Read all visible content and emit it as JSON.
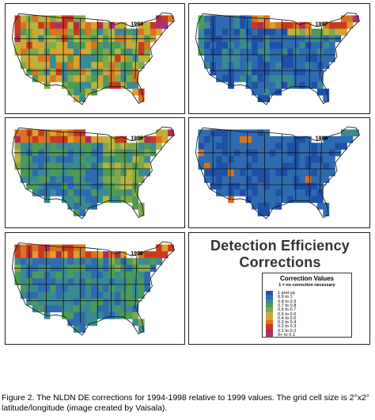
{
  "maps": [
    {
      "year": "1994",
      "pattern": "mixed"
    },
    {
      "year": "1997",
      "pattern": "mostly-blue-north-edge"
    },
    {
      "year": "1995",
      "pattern": "green-blue"
    },
    {
      "year": "1998",
      "pattern": "blue"
    },
    {
      "year": "1996",
      "pattern": "blue-green-north-red"
    }
  ],
  "legend": {
    "heading": "Detection Efficiency Corrections",
    "heading_line1": "Detection Efficiency",
    "heading_line2": "Corrections",
    "title": "Correction Values",
    "subtitle": "1 = no correction necessary",
    "items": [
      {
        "label": "1     and up",
        "color": "#1f4fa8"
      },
      {
        "label": "0.9 to 1",
        "color": "#2e6bb0"
      },
      {
        "label": "0.8 to 0.9",
        "color": "#3a8a92"
      },
      {
        "label": "0.7 to 0.8",
        "color": "#4c9a57"
      },
      {
        "label": "0.6 to 0.7",
        "color": "#7fa94a"
      },
      {
        "label": "0.5 to 0.6",
        "color": "#b7b43e"
      },
      {
        "label": "0.4 to 0.5",
        "color": "#d9a12e"
      },
      {
        "label": "0.3 to 0.4",
        "color": "#d9731f"
      },
      {
        "label": "0.2 to 0.3",
        "color": "#c9391d"
      },
      {
        "label": "0.1 to 0.2",
        "color": "#b52a4a"
      },
      {
        "label": "0+   to 0.1",
        "color": "#a3337a"
      }
    ]
  },
  "caption": "Figure 2.  The NLDN DE corrections for 1994-1998 relative to 1999 values. The grid cell size is 2°x2° latitude/longitude (image created by Vaisala)."
}
